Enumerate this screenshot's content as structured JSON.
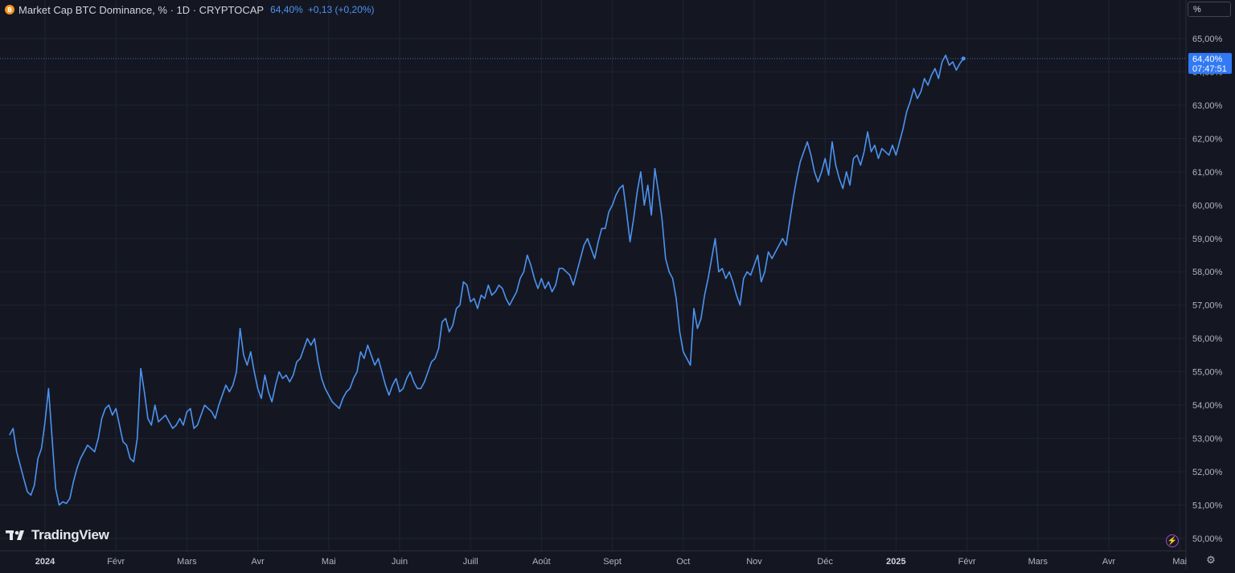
{
  "legend": {
    "coin_glyph": "B",
    "symbol": "Market Cap BTC Dominance, % · 1D · CRYPTOCAP",
    "last_value": "64,40%",
    "change": "+0,13 (+0,20%)"
  },
  "scale_button": "%",
  "last_price_label": {
    "value": "64,40%",
    "countdown": "07:47:51"
  },
  "brand": "TradingView",
  "icons": {
    "coin": "bitcoin-coin-icon",
    "logo": "tradingview-logo-icon",
    "flash": "lightning-icon",
    "settings": "gear-icon"
  },
  "colors": {
    "background": "#141722",
    "line": "#4c93f0",
    "grid": "#1f2430",
    "text": "#b2b5be",
    "label_bg": "#3179f5"
  },
  "chart_data": {
    "type": "line",
    "title": "Market Cap BTC Dominance, % · 1D · CRYPTOCAP",
    "ylim": [
      49.85,
      65.45
    ],
    "y_ticks": [
      "50,00%",
      "51,00%",
      "52,00%",
      "53,00%",
      "54,00%",
      "55,00%",
      "56,00%",
      "57,00%",
      "58,00%",
      "59,00%",
      "60,00%",
      "61,00%",
      "62,00%",
      "63,00%",
      "64,00%",
      "65,00%"
    ],
    "x_ticks": [
      {
        "label": "2024",
        "month": 0,
        "bold": true
      },
      {
        "label": "Févr",
        "month": 1
      },
      {
        "label": "Mars",
        "month": 2
      },
      {
        "label": "Avr",
        "month": 3
      },
      {
        "label": "Mai",
        "month": 4
      },
      {
        "label": "Juin",
        "month": 5
      },
      {
        "label": "Juill",
        "month": 6
      },
      {
        "label": "Août",
        "month": 7
      },
      {
        "label": "Sept",
        "month": 8
      },
      {
        "label": "Oct",
        "month": 9
      },
      {
        "label": "Nov",
        "month": 10
      },
      {
        "label": "Déc",
        "month": 11
      },
      {
        "label": "2025",
        "month": 12,
        "bold": true
      },
      {
        "label": "Févr",
        "month": 13
      },
      {
        "label": "Mars",
        "month": 14
      },
      {
        "label": "Avr",
        "month": 15
      },
      {
        "label": "Mai",
        "month": 16
      }
    ],
    "series": [
      {
        "values": [
          [
            -0.5,
            53.1
          ],
          [
            -0.45,
            53.3
          ],
          [
            -0.4,
            52.6
          ],
          [
            -0.35,
            52.2
          ],
          [
            -0.3,
            51.8
          ],
          [
            -0.25,
            51.4
          ],
          [
            -0.2,
            51.3
          ],
          [
            -0.15,
            51.6
          ],
          [
            -0.1,
            52.4
          ],
          [
            -0.05,
            52.7
          ],
          [
            0.0,
            53.5
          ],
          [
            0.05,
            54.5
          ],
          [
            0.1,
            53.0
          ],
          [
            0.15,
            51.5
          ],
          [
            0.2,
            51.0
          ],
          [
            0.25,
            51.1
          ],
          [
            0.3,
            51.05
          ],
          [
            0.35,
            51.2
          ],
          [
            0.4,
            51.7
          ],
          [
            0.45,
            52.1
          ],
          [
            0.5,
            52.4
          ],
          [
            0.55,
            52.6
          ],
          [
            0.6,
            52.8
          ],
          [
            0.65,
            52.7
          ],
          [
            0.7,
            52.6
          ],
          [
            0.75,
            53.0
          ],
          [
            0.8,
            53.6
          ],
          [
            0.85,
            53.9
          ],
          [
            0.9,
            54.0
          ],
          [
            0.95,
            53.7
          ],
          [
            1.0,
            53.9
          ],
          [
            1.05,
            53.4
          ],
          [
            1.1,
            52.9
          ],
          [
            1.15,
            52.8
          ],
          [
            1.2,
            52.4
          ],
          [
            1.25,
            52.3
          ],
          [
            1.3,
            53.0
          ],
          [
            1.35,
            55.1
          ],
          [
            1.4,
            54.4
          ],
          [
            1.45,
            53.6
          ],
          [
            1.5,
            53.4
          ],
          [
            1.55,
            54.0
          ],
          [
            1.6,
            53.5
          ],
          [
            1.65,
            53.6
          ],
          [
            1.7,
            53.7
          ],
          [
            1.75,
            53.5
          ],
          [
            1.8,
            53.3
          ],
          [
            1.85,
            53.4
          ],
          [
            1.9,
            53.6
          ],
          [
            1.95,
            53.4
          ],
          [
            2.0,
            53.8
          ],
          [
            2.05,
            53.9
          ],
          [
            2.1,
            53.3
          ],
          [
            2.15,
            53.4
          ],
          [
            2.2,
            53.7
          ],
          [
            2.25,
            54.0
          ],
          [
            2.3,
            53.9
          ],
          [
            2.35,
            53.8
          ],
          [
            2.4,
            53.6
          ],
          [
            2.45,
            54.0
          ],
          [
            2.5,
            54.3
          ],
          [
            2.55,
            54.6
          ],
          [
            2.6,
            54.4
          ],
          [
            2.65,
            54.6
          ],
          [
            2.7,
            55.0
          ],
          [
            2.75,
            56.3
          ],
          [
            2.8,
            55.5
          ],
          [
            2.85,
            55.2
          ],
          [
            2.9,
            55.6
          ],
          [
            2.95,
            55.0
          ],
          [
            3.0,
            54.5
          ],
          [
            3.05,
            54.2
          ],
          [
            3.1,
            54.9
          ],
          [
            3.15,
            54.4
          ],
          [
            3.2,
            54.1
          ],
          [
            3.25,
            54.6
          ],
          [
            3.3,
            55.0
          ],
          [
            3.35,
            54.8
          ],
          [
            3.4,
            54.9
          ],
          [
            3.45,
            54.7
          ],
          [
            3.5,
            54.9
          ],
          [
            3.55,
            55.3
          ],
          [
            3.6,
            55.4
          ],
          [
            3.65,
            55.7
          ],
          [
            3.7,
            56.0
          ],
          [
            3.75,
            55.8
          ],
          [
            3.8,
            56.0
          ],
          [
            3.85,
            55.3
          ],
          [
            3.9,
            54.8
          ],
          [
            3.95,
            54.5
          ],
          [
            4.0,
            54.3
          ],
          [
            4.05,
            54.1
          ],
          [
            4.1,
            54.0
          ],
          [
            4.15,
            53.9
          ],
          [
            4.2,
            54.2
          ],
          [
            4.25,
            54.4
          ],
          [
            4.3,
            54.5
          ],
          [
            4.35,
            54.8
          ],
          [
            4.4,
            55.0
          ],
          [
            4.45,
            55.6
          ],
          [
            4.5,
            55.4
          ],
          [
            4.55,
            55.8
          ],
          [
            4.6,
            55.5
          ],
          [
            4.65,
            55.2
          ],
          [
            4.7,
            55.4
          ],
          [
            4.75,
            55.0
          ],
          [
            4.8,
            54.6
          ],
          [
            4.85,
            54.3
          ],
          [
            4.9,
            54.6
          ],
          [
            4.95,
            54.8
          ],
          [
            5.0,
            54.4
          ],
          [
            5.05,
            54.5
          ],
          [
            5.1,
            54.8
          ],
          [
            5.15,
            55.0
          ],
          [
            5.2,
            54.7
          ],
          [
            5.25,
            54.5
          ],
          [
            5.3,
            54.5
          ],
          [
            5.35,
            54.7
          ],
          [
            5.4,
            55.0
          ],
          [
            5.45,
            55.3
          ],
          [
            5.5,
            55.4
          ],
          [
            5.55,
            55.7
          ],
          [
            5.6,
            56.5
          ],
          [
            5.65,
            56.6
          ],
          [
            5.7,
            56.2
          ],
          [
            5.75,
            56.4
          ],
          [
            5.8,
            56.9
          ],
          [
            5.85,
            57.0
          ],
          [
            5.9,
            57.7
          ],
          [
            5.95,
            57.6
          ],
          [
            6.0,
            57.1
          ],
          [
            6.05,
            57.2
          ],
          [
            6.1,
            56.9
          ],
          [
            6.15,
            57.3
          ],
          [
            6.2,
            57.2
          ],
          [
            6.25,
            57.6
          ],
          [
            6.3,
            57.3
          ],
          [
            6.35,
            57.4
          ],
          [
            6.4,
            57.6
          ],
          [
            6.45,
            57.5
          ],
          [
            6.5,
            57.2
          ],
          [
            6.55,
            57.0
          ],
          [
            6.6,
            57.2
          ],
          [
            6.65,
            57.4
          ],
          [
            6.7,
            57.8
          ],
          [
            6.75,
            58.0
          ],
          [
            6.8,
            58.5
          ],
          [
            6.85,
            58.2
          ],
          [
            6.9,
            57.8
          ],
          [
            6.95,
            57.5
          ],
          [
            7.0,
            57.8
          ],
          [
            7.05,
            57.5
          ],
          [
            7.1,
            57.7
          ],
          [
            7.15,
            57.4
          ],
          [
            7.2,
            57.6
          ],
          [
            7.25,
            58.1
          ],
          [
            7.3,
            58.1
          ],
          [
            7.35,
            58.0
          ],
          [
            7.4,
            57.9
          ],
          [
            7.45,
            57.6
          ],
          [
            7.5,
            58.0
          ],
          [
            7.55,
            58.4
          ],
          [
            7.6,
            58.8
          ],
          [
            7.65,
            59.0
          ],
          [
            7.7,
            58.7
          ],
          [
            7.75,
            58.4
          ],
          [
            7.8,
            58.9
          ],
          [
            7.85,
            59.3
          ],
          [
            7.9,
            59.3
          ],
          [
            7.95,
            59.8
          ],
          [
            8.0,
            60.0
          ],
          [
            8.05,
            60.3
          ],
          [
            8.1,
            60.5
          ],
          [
            8.15,
            60.6
          ],
          [
            8.2,
            59.8
          ],
          [
            8.25,
            58.9
          ],
          [
            8.3,
            59.6
          ],
          [
            8.35,
            60.4
          ],
          [
            8.4,
            61.0
          ],
          [
            8.45,
            60.0
          ],
          [
            8.5,
            60.6
          ],
          [
            8.55,
            59.7
          ],
          [
            8.6,
            61.1
          ],
          [
            8.65,
            60.4
          ],
          [
            8.7,
            59.6
          ],
          [
            8.75,
            58.4
          ],
          [
            8.8,
            58.0
          ],
          [
            8.85,
            57.8
          ],
          [
            8.9,
            57.2
          ],
          [
            8.95,
            56.2
          ],
          [
            9.0,
            55.6
          ],
          [
            9.05,
            55.4
          ],
          [
            9.1,
            55.2
          ],
          [
            9.15,
            56.9
          ],
          [
            9.2,
            56.3
          ],
          [
            9.25,
            56.6
          ],
          [
            9.3,
            57.3
          ],
          [
            9.35,
            57.8
          ],
          [
            9.4,
            58.4
          ],
          [
            9.45,
            59.0
          ],
          [
            9.5,
            58.0
          ],
          [
            9.55,
            58.1
          ],
          [
            9.6,
            57.8
          ],
          [
            9.65,
            58.0
          ],
          [
            9.7,
            57.7
          ],
          [
            9.75,
            57.3
          ],
          [
            9.8,
            57.0
          ],
          [
            9.85,
            57.8
          ],
          [
            9.9,
            58.0
          ],
          [
            9.95,
            57.9
          ],
          [
            10.0,
            58.2
          ],
          [
            10.05,
            58.5
          ],
          [
            10.1,
            57.7
          ],
          [
            10.15,
            58.0
          ],
          [
            10.2,
            58.6
          ],
          [
            10.25,
            58.4
          ],
          [
            10.3,
            58.6
          ],
          [
            10.35,
            58.8
          ],
          [
            10.4,
            59.0
          ],
          [
            10.45,
            58.8
          ],
          [
            10.5,
            59.5
          ],
          [
            10.55,
            60.2
          ],
          [
            10.6,
            60.8
          ],
          [
            10.65,
            61.3
          ],
          [
            10.7,
            61.6
          ],
          [
            10.75,
            61.9
          ],
          [
            10.8,
            61.5
          ],
          [
            10.85,
            61.0
          ],
          [
            10.9,
            60.7
          ],
          [
            10.95,
            61.0
          ],
          [
            11.0,
            61.4
          ],
          [
            11.05,
            60.9
          ],
          [
            11.1,
            61.9
          ],
          [
            11.15,
            61.2
          ],
          [
            11.2,
            60.8
          ],
          [
            11.25,
            60.5
          ],
          [
            11.3,
            61.0
          ],
          [
            11.35,
            60.6
          ],
          [
            11.4,
            61.4
          ],
          [
            11.45,
            61.5
          ],
          [
            11.5,
            61.2
          ],
          [
            11.55,
            61.6
          ],
          [
            11.6,
            62.2
          ],
          [
            11.65,
            61.6
          ],
          [
            11.7,
            61.8
          ],
          [
            11.75,
            61.4
          ],
          [
            11.8,
            61.7
          ],
          [
            11.85,
            61.6
          ],
          [
            11.9,
            61.5
          ],
          [
            11.95,
            61.8
          ],
          [
            12.0,
            61.5
          ],
          [
            12.05,
            61.9
          ],
          [
            12.1,
            62.3
          ],
          [
            12.15,
            62.8
          ],
          [
            12.2,
            63.1
          ],
          [
            12.25,
            63.5
          ],
          [
            12.3,
            63.2
          ],
          [
            12.35,
            63.4
          ],
          [
            12.4,
            63.8
          ],
          [
            12.45,
            63.6
          ],
          [
            12.5,
            63.9
          ],
          [
            12.55,
            64.1
          ],
          [
            12.6,
            63.8
          ],
          [
            12.65,
            64.3
          ],
          [
            12.7,
            64.5
          ],
          [
            12.75,
            64.2
          ],
          [
            12.8,
            64.3
          ],
          [
            12.85,
            64.05
          ],
          [
            12.9,
            64.25
          ],
          [
            12.95,
            64.4
          ]
        ]
      }
    ]
  }
}
